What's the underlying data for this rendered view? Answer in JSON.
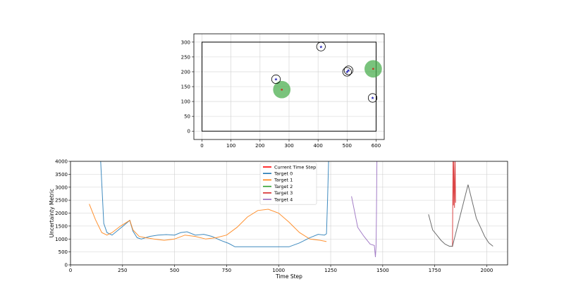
{
  "chart_data": [
    {
      "type": "scatter",
      "title": "",
      "xlabel": "",
      "ylabel": "",
      "xlim": [
        -28,
        628
      ],
      "ylim": [
        -28,
        328
      ],
      "grid": true,
      "xticks": [
        "0",
        "100",
        "200",
        "300",
        "400",
        "500",
        "600"
      ],
      "yticks": [
        "0",
        "50",
        "100",
        "150",
        "200",
        "250",
        "300"
      ],
      "boundary": {
        "x": [
          0,
          600
        ],
        "y": [
          0,
          300
        ]
      },
      "sensors": [
        {
          "x": 275,
          "y": 140,
          "radius": 30
        },
        {
          "x": 590,
          "y": 210,
          "radius": 30
        }
      ],
      "targets": [
        {
          "x": 255,
          "y": 175,
          "radius": 15
        },
        {
          "x": 410,
          "y": 285,
          "radius": 15
        },
        {
          "x": 500,
          "y": 200,
          "radius": 15
        },
        {
          "x": 505,
          "y": 205,
          "radius": 15
        },
        {
          "x": 588,
          "y": 112,
          "radius": 15
        }
      ],
      "colors": {
        "sensor_fill": "#4caf50",
        "sensor_dot": "#c0392b",
        "target_marker": "#1f1fb4"
      }
    },
    {
      "type": "line",
      "title": "",
      "xlabel": "Time Step",
      "ylabel": "Uncertainty Metric",
      "xlim": [
        0,
        2100
      ],
      "ylim": [
        0,
        4000
      ],
      "grid": true,
      "legend_position": "top-center",
      "xticks": [
        "0",
        "250",
        "500",
        "750",
        "1000",
        "1250",
        "1500",
        "1750",
        "2000"
      ],
      "yticks": [
        "0",
        "500",
        "1000",
        "1500",
        "2000",
        "2500",
        "3000",
        "3500",
        "4000"
      ],
      "series": [
        {
          "name": "Current Time Step",
          "color": "#ff0000",
          "x": [],
          "y": []
        },
        {
          "name": "Target 0",
          "color": "#1f77b4",
          "x": [
            145,
            160,
            175,
            200,
            230,
            260,
            285,
            300,
            320,
            340,
            380,
            420,
            460,
            500,
            530,
            560,
            600,
            640,
            680,
            720,
            760,
            790,
            850,
            950,
            1050,
            1100,
            1150,
            1190,
            1220,
            1230,
            1235,
            1240
          ],
          "y": [
            4000,
            1600,
            1250,
            1150,
            1350,
            1550,
            1720,
            1300,
            1050,
            1000,
            1100,
            1150,
            1170,
            1150,
            1250,
            1280,
            1150,
            1180,
            1100,
            950,
            830,
            700,
            700,
            700,
            700,
            850,
            1050,
            1180,
            1150,
            1200,
            2500,
            4000
          ]
        },
        {
          "name": "Target 1",
          "color": "#ff7f0e",
          "x": [
            90,
            120,
            150,
            175,
            200,
            240,
            285,
            300,
            330,
            360,
            400,
            450,
            500,
            550,
            600,
            650,
            700,
            750,
            800,
            850,
            900,
            950,
            1000,
            1050,
            1100,
            1150,
            1200,
            1230
          ],
          "y": [
            2350,
            1750,
            1250,
            1150,
            1250,
            1500,
            1720,
            1350,
            1100,
            1050,
            1000,
            950,
            1000,
            1150,
            1100,
            1000,
            1050,
            1150,
            1450,
            1850,
            2100,
            2150,
            2000,
            1650,
            1250,
            1000,
            950,
            900
          ]
        },
        {
          "name": "Target 2",
          "color": "#2ca02c",
          "x": [],
          "y": []
        },
        {
          "name": "Target 3",
          "color": "#d62728",
          "x": [
            1835,
            1838,
            1840,
            1842,
            1845,
            1848,
            1850
          ],
          "y": [
            700,
            4000,
            2300,
            4000,
            2200,
            4000,
            2400
          ]
        },
        {
          "name": "Target 4",
          "color": "#9467bd",
          "x": [
            1350,
            1380,
            1410,
            1440,
            1460,
            1465,
            1468,
            1470,
            1472
          ],
          "y": [
            2650,
            1450,
            1100,
            800,
            750,
            300,
            700,
            2000,
            4000
          ]
        },
        {
          "name": "",
          "color": "#555555",
          "x": [
            1720,
            1740,
            1760,
            1780,
            1800,
            1820,
            1835,
            1910,
            1930,
            1950,
            1970,
            1990,
            2010,
            2030
          ],
          "y": [
            1950,
            1350,
            1150,
            950,
            800,
            720,
            720,
            3100,
            2450,
            1800,
            1450,
            1100,
            850,
            720
          ]
        }
      ]
    }
  ]
}
